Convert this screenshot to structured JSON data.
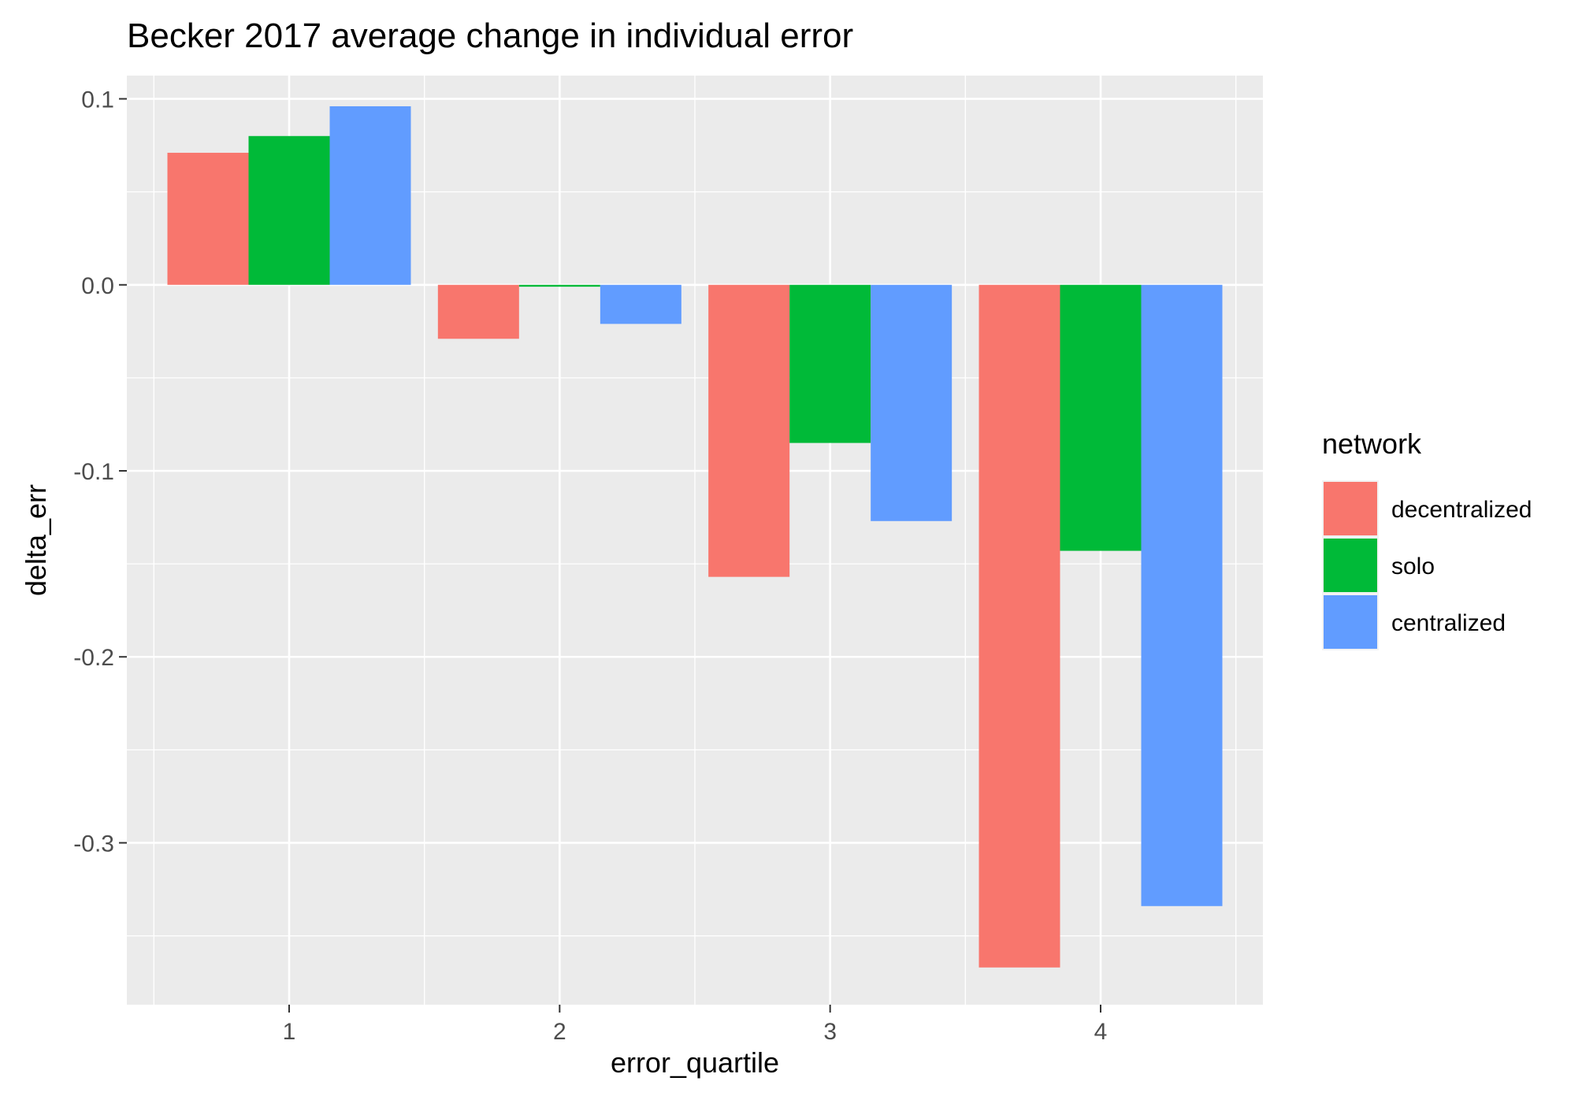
{
  "chart_data": {
    "type": "bar",
    "title": "Becker 2017 average change in individual error",
    "xlabel": "error_quartile",
    "ylabel": "delta_err",
    "categories": [
      "1",
      "2",
      "3",
      "4"
    ],
    "y_ticks": [
      0.1,
      0.0,
      -0.1,
      -0.2,
      -0.3
    ],
    "y_tick_labels": [
      "0.1",
      "0.0",
      "-0.1",
      "-0.2",
      "-0.3"
    ],
    "ylim": [
      -0.387,
      0.1125
    ],
    "grid": true,
    "legend": {
      "title": "network",
      "position": "right"
    },
    "series": [
      {
        "name": "decentralized",
        "color": "#F8766D",
        "values": [
          0.071,
          -0.029,
          -0.157,
          -0.367
        ]
      },
      {
        "name": "solo",
        "color": "#00BA38",
        "values": [
          0.08,
          -0.001,
          -0.085,
          -0.143
        ]
      },
      {
        "name": "centralized",
        "color": "#619CFF",
        "values": [
          0.096,
          -0.021,
          -0.127,
          -0.334
        ]
      }
    ]
  }
}
